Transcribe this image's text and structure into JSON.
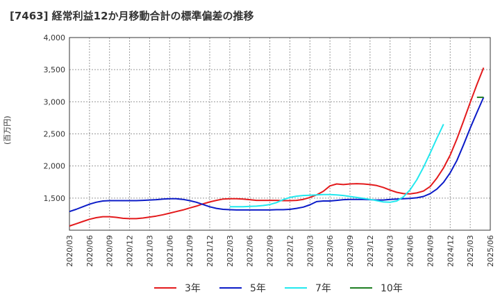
{
  "chart_data": {
    "type": "line",
    "title": "[7463]  経常利益12か月移動合計の標準偏差の推移",
    "ylabel": "(百万円)",
    "ylim": [
      1000,
      4000
    ],
    "yticks": [
      1500,
      2000,
      2500,
      3000,
      3500,
      4000
    ],
    "ytick_labels": [
      "1,500",
      "2,000",
      "2,500",
      "3,000",
      "3,500",
      "4,000"
    ],
    "x_tick_labels": [
      "2020/03",
      "2020/06",
      "2020/09",
      "2020/12",
      "2021/03",
      "2021/06",
      "2021/09",
      "2021/12",
      "2022/03",
      "2022/06",
      "2022/09",
      "2022/12",
      "2023/03",
      "2023/06",
      "2023/09",
      "2023/12",
      "2024/03",
      "2024/06",
      "2024/09",
      "2024/12",
      "2025/03",
      "2025/06"
    ],
    "x_start": "2020/03",
    "num_months": 63,
    "grid": true,
    "legend_position": "bottom",
    "series": [
      {
        "name": "3年",
        "color": "#e31a1c",
        "start_index": 0,
        "values": [
          1065,
          1100,
          1135,
          1170,
          1195,
          1210,
          1210,
          1200,
          1185,
          1180,
          1180,
          1190,
          1205,
          1220,
          1240,
          1265,
          1290,
          1315,
          1345,
          1375,
          1410,
          1440,
          1465,
          1485,
          1490,
          1490,
          1485,
          1475,
          1465,
          1465,
          1465,
          1465,
          1460,
          1460,
          1465,
          1480,
          1510,
          1550,
          1605,
          1690,
          1720,
          1710,
          1720,
          1725,
          1720,
          1710,
          1695,
          1665,
          1625,
          1590,
          1570,
          1565,
          1580,
          1610,
          1680,
          1810,
          1970,
          2170,
          2420,
          2700,
          2990,
          3270,
          3530
        ]
      },
      {
        "name": "5年",
        "color": "#0b1bc8",
        "start_index": 0,
        "values": [
          1290,
          1325,
          1365,
          1405,
          1435,
          1455,
          1460,
          1460,
          1460,
          1460,
          1460,
          1465,
          1470,
          1475,
          1485,
          1490,
          1490,
          1480,
          1460,
          1435,
          1400,
          1365,
          1340,
          1325,
          1320,
          1315,
          1315,
          1315,
          1315,
          1315,
          1315,
          1320,
          1320,
          1325,
          1340,
          1360,
          1395,
          1445,
          1455,
          1455,
          1465,
          1475,
          1480,
          1480,
          1480,
          1475,
          1470,
          1470,
          1480,
          1485,
          1490,
          1495,
          1505,
          1525,
          1570,
          1640,
          1745,
          1895,
          2085,
          2330,
          2590,
          2835,
          3070
        ]
      },
      {
        "name": "7年",
        "color": "#22e8ee",
        "start_index": 24,
        "values": [
          1365,
          1365,
          1365,
          1370,
          1375,
          1385,
          1400,
          1430,
          1475,
          1510,
          1530,
          1540,
          1545,
          1550,
          1555,
          1555,
          1550,
          1540,
          1525,
          1510,
          1495,
          1480,
          1460,
          1440,
          1435,
          1455,
          1520,
          1630,
          1785,
          1980,
          2200,
          2430,
          2650
        ]
      },
      {
        "name": "10年",
        "color": "#1e7e22",
        "start_index": 61,
        "values": [
          3070,
          3070
        ]
      }
    ]
  }
}
